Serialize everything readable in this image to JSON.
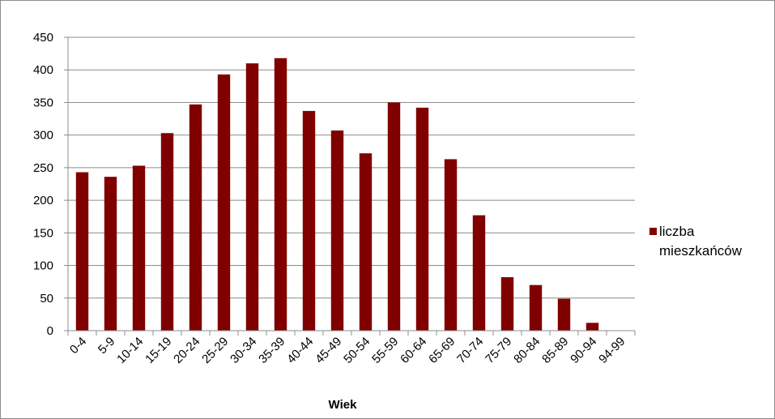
{
  "chart_data": {
    "type": "bar",
    "categories": [
      "0-4",
      "5-9",
      "10-14",
      "15-19",
      "20-24",
      "25-29",
      "30-34",
      "35-39",
      "40-44",
      "45-49",
      "50-54",
      "55-59",
      "60-64",
      "65-69",
      "70-74",
      "75-79",
      "80-84",
      "85-89",
      "90-94",
      "94-99"
    ],
    "series": [
      {
        "name": "liczba mieszkańców",
        "values": [
          243,
          236,
          253,
          303,
          347,
          393,
          410,
          418,
          337,
          307,
          272,
          350,
          342,
          263,
          177,
          82,
          70,
          49,
          12,
          0
        ]
      }
    ],
    "xlabel": "Wiek",
    "ylabel": "",
    "ylim": [
      0,
      450
    ],
    "yticks": [
      "0",
      "50",
      "100",
      "150",
      "200",
      "250",
      "300",
      "350",
      "400",
      "450"
    ],
    "grid": true,
    "legend_position": "right",
    "legend_lines": [
      "liczba",
      "mieszkańców"
    ],
    "colors": {
      "bar": "#800000",
      "grid": "#8c8c8c",
      "axis": "#8c8c8c"
    }
  }
}
